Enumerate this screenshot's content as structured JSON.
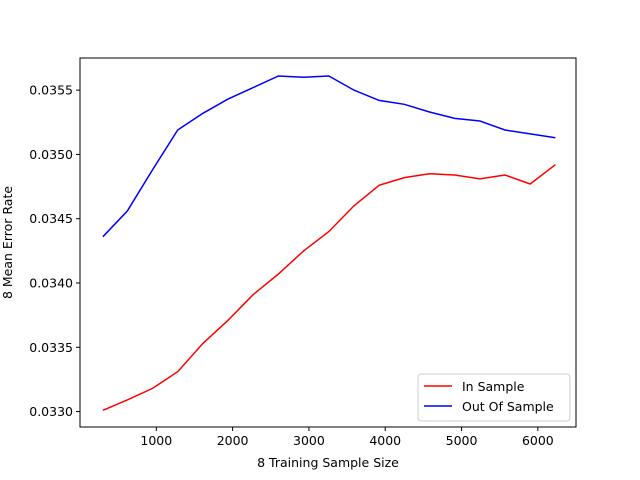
{
  "chart_data": {
    "type": "line",
    "title": "",
    "xlabel": "8 Training Sample Size",
    "ylabel": "8 Mean Error Rate",
    "xlim": [
      0,
      6500
    ],
    "ylim": [
      0.03288,
      0.03575
    ],
    "xticks": [
      1000,
      2000,
      3000,
      4000,
      5000,
      6000
    ],
    "xtick_labels": [
      "1000",
      "2000",
      "3000",
      "4000",
      "5000",
      "6000"
    ],
    "yticks": [
      0.033,
      0.0335,
      0.034,
      0.0345,
      0.035,
      0.0355
    ],
    "ytick_labels": [
      "0.0330",
      "0.0335",
      "0.0340",
      "0.0345",
      "0.0350",
      "0.0355"
    ],
    "grid": false,
    "legend_position": "lower-right",
    "x": [
      300,
      620,
      950,
      1280,
      1610,
      1940,
      2270,
      2600,
      2930,
      3260,
      3590,
      3920,
      4250,
      4580,
      4910,
      5240,
      5570,
      5900,
      6230
    ],
    "series": [
      {
        "name": "In Sample",
        "color": "#ff0000",
        "values": [
          0.03301,
          0.03309,
          0.03318,
          0.03331,
          0.03353,
          0.03371,
          0.03391,
          0.03407,
          0.03425,
          0.0344,
          0.0346,
          0.03476,
          0.03482,
          0.03485,
          0.03484,
          0.03481,
          0.03484,
          0.03477,
          0.03492
        ]
      },
      {
        "name": "Out Of Sample",
        "color": "#0000ff",
        "values": [
          0.03436,
          0.03456,
          0.03488,
          0.03519,
          0.03532,
          0.03543,
          0.03552,
          0.03561,
          0.0356,
          0.03561,
          0.0355,
          0.03542,
          0.03539,
          0.03533,
          0.03528,
          0.03526,
          0.03519,
          0.03516,
          0.03513
        ]
      }
    ]
  }
}
